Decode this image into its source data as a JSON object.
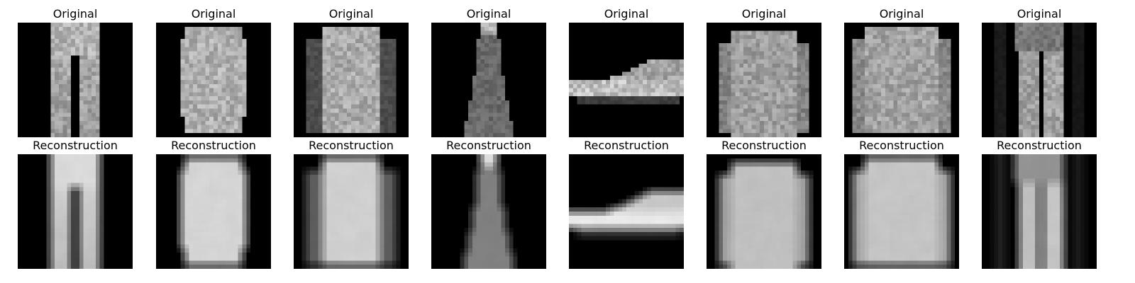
{
  "rows": [
    {
      "label": "Original",
      "items": [
        {
          "label": "Original",
          "content": "trousers"
        },
        {
          "label": "Original",
          "content": "dress"
        },
        {
          "label": "Original",
          "content": "pullover"
        },
        {
          "label": "Original",
          "content": "slim-dress"
        },
        {
          "label": "Original",
          "content": "sneaker"
        },
        {
          "label": "Original",
          "content": "shirt"
        },
        {
          "label": "Original",
          "content": "jacket"
        },
        {
          "label": "Original",
          "content": "trousers-dark"
        }
      ]
    },
    {
      "label": "Reconstruction",
      "items": [
        {
          "label": "Reconstruction",
          "content": "trousers"
        },
        {
          "label": "Reconstruction",
          "content": "dress"
        },
        {
          "label": "Reconstruction",
          "content": "pullover"
        },
        {
          "label": "Reconstruction",
          "content": "slim-dress"
        },
        {
          "label": "Reconstruction",
          "content": "sneaker"
        },
        {
          "label": "Reconstruction",
          "content": "shirt"
        },
        {
          "label": "Reconstruction",
          "content": "jacket"
        },
        {
          "label": "Reconstruction",
          "content": "trousers-dark"
        }
      ]
    }
  ]
}
